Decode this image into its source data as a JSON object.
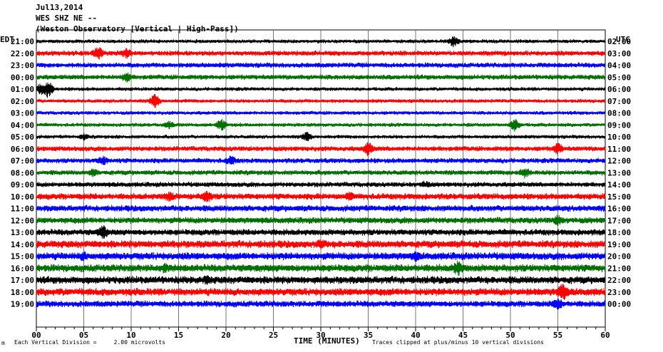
{
  "header": {
    "date": "Jul13,2014",
    "station": "WES SHZ NE --",
    "observatory": "(Weston Observatory [Vertical | High-Pass])"
  },
  "corner": {
    "left_tz": "EDT",
    "right_tz": "UTC"
  },
  "footer": {
    "vertical_division": "Each Vertical Division =     2.00 microvolts",
    "clip_note": "Traces clipped at plus/minus 10 vertical divisions",
    "mark": "m"
  },
  "chart_data": {
    "type": "line",
    "xlabel": "TIME (MINUTES)",
    "xlim": [
      0,
      60
    ],
    "x_ticks": [
      "00",
      "05",
      "10",
      "15",
      "20",
      "25",
      "30",
      "35",
      "40",
      "45",
      "50",
      "55",
      "60"
    ],
    "rows_left": [
      "21:00",
      "22:00",
      "23:00",
      "00:00",
      "01:00",
      "02:00",
      "03:00",
      "04:00",
      "05:00",
      "06:00",
      "07:00",
      "08:00",
      "09:00",
      "10:00",
      "11:00",
      "12:00",
      "13:00",
      "14:00",
      "15:00",
      "16:00",
      "17:00",
      "18:00",
      "19:00"
    ],
    "rows_right": [
      "02:00",
      "03:00",
      "04:00",
      "05:00",
      "06:00",
      "07:00",
      "08:00",
      "09:00",
      "10:00",
      "11:00",
      "12:00",
      "13:00",
      "14:00",
      "15:00",
      "16:00",
      "17:00",
      "18:00",
      "19:00",
      "20:00",
      "21:00",
      "22:00",
      "23:00",
      "00:00"
    ],
    "row_colors": [
      "#000000",
      "#ff0000",
      "#0000ff",
      "#007000"
    ],
    "series": [
      {
        "amp": 3,
        "events": [
          [
            44,
            7
          ]
        ]
      },
      {
        "amp": 4,
        "events": [
          [
            6.5,
            9
          ],
          [
            9.5,
            6
          ]
        ]
      },
      {
        "amp": 4,
        "events": []
      },
      {
        "amp": 4,
        "events": [
          [
            9.5,
            6
          ]
        ]
      },
      {
        "amp": 3,
        "events": [
          [
            1.2,
            12
          ],
          [
            0.5,
            8
          ]
        ]
      },
      {
        "amp": 3,
        "events": [
          [
            12.5,
            9
          ]
        ]
      },
      {
        "amp": 3,
        "events": []
      },
      {
        "amp": 3,
        "events": [
          [
            19.5,
            8
          ],
          [
            50.5,
            9
          ],
          [
            14,
            5
          ]
        ]
      },
      {
        "amp": 3,
        "events": [
          [
            28.5,
            6
          ],
          [
            5,
            4
          ]
        ]
      },
      {
        "amp": 4,
        "events": [
          [
            35,
            9
          ],
          [
            55,
            7
          ]
        ]
      },
      {
        "amp": 4,
        "events": [
          [
            7,
            6
          ],
          [
            20.5,
            6
          ]
        ]
      },
      {
        "amp": 4,
        "events": [
          [
            6,
            5
          ],
          [
            51.5,
            7
          ]
        ]
      },
      {
        "amp": 4,
        "events": [
          [
            41,
            4
          ]
        ]
      },
      {
        "amp": 5,
        "events": [
          [
            14,
            6
          ],
          [
            18,
            8
          ],
          [
            33,
            5
          ]
        ]
      },
      {
        "amp": 5,
        "events": []
      },
      {
        "amp": 5,
        "events": [
          [
            55,
            6
          ]
        ]
      },
      {
        "amp": 5,
        "events": [
          [
            7,
            9
          ]
        ]
      },
      {
        "amp": 6,
        "events": [
          [
            30,
            5
          ]
        ]
      },
      {
        "amp": 6,
        "events": [
          [
            5,
            5
          ],
          [
            40,
            5
          ]
        ]
      },
      {
        "amp": 6,
        "events": [
          [
            44.5,
            9
          ],
          [
            13.5,
            5
          ]
        ]
      },
      {
        "amp": 6,
        "events": [
          [
            18,
            5
          ]
        ]
      },
      {
        "amp": 6,
        "events": [
          [
            55.5,
            11
          ]
        ]
      },
      {
        "amp": 5,
        "events": [
          [
            55,
            7
          ]
        ]
      }
    ]
  }
}
